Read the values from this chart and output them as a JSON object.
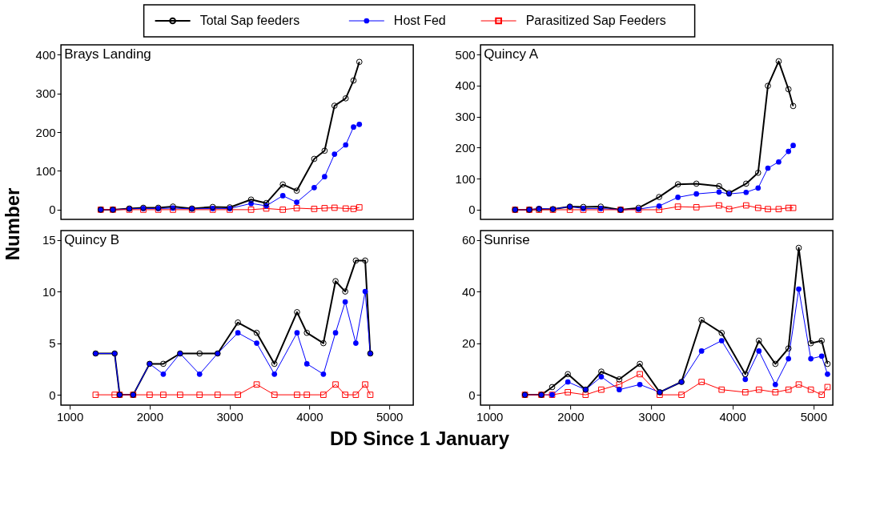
{
  "chart_data": [
    {
      "type": "line",
      "title": "Brays Landing",
      "ylabel": "Number",
      "legend": "top",
      "xlim": [
        890,
        5300
      ],
      "ylim": [
        -25,
        425
      ],
      "yticks": [
        0,
        100,
        200,
        300,
        400
      ],
      "xticks": [
        1000,
        2000,
        3000,
        4000,
        5000
      ],
      "tick_labels": "y",
      "x": [
        1388,
        1540,
        1746,
        1921,
        2108,
        2292,
        2530,
        2790,
        3003,
        3270,
        3460,
        3667,
        3841,
        4060,
        4190,
        4314,
        4454,
        4552,
        4625
      ],
      "series": [
        {
          "name": "Total Sap feeders",
          "color": "#000000",
          "marker": "circle",
          "values": [
            0,
            0,
            3,
            5,
            5,
            8,
            3,
            7,
            6,
            26,
            17,
            65,
            49,
            131,
            152,
            268,
            287,
            333,
            381
          ]
        },
        {
          "name": "Host Fed",
          "color": "#0000ff",
          "marker": "circle",
          "values": [
            0,
            0,
            2,
            3,
            3,
            4,
            2,
            3,
            3,
            16,
            10,
            36,
            19,
            57,
            85,
            143,
            167,
            213,
            220
          ]
        },
        {
          "name": "Parasitized Sap Feeders",
          "color": "#ff0000",
          "marker": "square",
          "values": [
            0,
            0,
            0,
            0,
            0,
            0,
            0,
            0,
            0,
            0,
            3,
            0,
            4,
            2,
            4,
            5,
            3,
            2,
            6
          ]
        }
      ]
    },
    {
      "type": "line",
      "title": "Quincy A",
      "xlim": [
        890,
        5240
      ],
      "ylim": [
        -31,
        531
      ],
      "yticks": [
        0,
        100,
        200,
        300,
        400,
        500
      ],
      "xticks": [
        1000,
        2000,
        3000,
        4000,
        5000
      ],
      "tick_labels": "y",
      "x": [
        1317,
        1492,
        1612,
        1784,
        1993,
        2159,
        2374,
        2619,
        2841,
        3095,
        3327,
        3555,
        3835,
        3959,
        4169,
        4317,
        4438,
        4571,
        4692,
        4750
      ],
      "series": [
        {
          "color": "#000000",
          "marker": "circle",
          "values": [
            0,
            0,
            2,
            2,
            10,
            9,
            10,
            0,
            6,
            41,
            82,
            84,
            76,
            54,
            84,
            119,
            399,
            478,
            388,
            334
          ]
        },
        {
          "color": "#0000ff",
          "marker": "circle",
          "values": [
            0,
            0,
            4,
            2,
            10,
            4,
            4,
            0,
            2,
            12,
            40,
            51,
            57,
            51,
            56,
            70,
            134,
            154,
            188,
            207
          ]
        },
        {
          "color": "#ff0000",
          "marker": "square",
          "values": [
            0,
            0,
            0,
            0,
            0,
            0,
            0,
            0,
            0,
            0,
            10,
            8,
            14,
            2,
            14,
            6,
            2,
            2,
            6,
            6
          ]
        }
      ]
    },
    {
      "type": "line",
      "title": "Quincy B",
      "xlabel": "DD Since 1 January",
      "xlim": [
        890,
        5300
      ],
      "ylim": [
        -1,
        15.9
      ],
      "yticks": [
        0,
        5,
        10,
        15
      ],
      "xticks": [
        1000,
        2000,
        3000,
        4000,
        5000
      ],
      "x": [
        1324,
        1562,
        1625,
        1794,
        2000,
        2171,
        2381,
        2625,
        2851,
        3105,
        3340,
        3562,
        3845,
        3968,
        4175,
        4327,
        4448,
        4581,
        4698,
        4762
      ],
      "series": [
        {
          "color": "#000000",
          "marker": "circle",
          "values": [
            4,
            4,
            0,
            0,
            3,
            3,
            4,
            4,
            4,
            7,
            6,
            3,
            8,
            6,
            5,
            11,
            10,
            13,
            13,
            4
          ]
        },
        {
          "color": "#0000ff",
          "marker": "circle",
          "values": [
            4,
            4,
            0,
            0,
            3,
            2,
            4,
            2,
            4,
            6,
            5,
            2,
            6,
            3,
            2,
            6,
            9,
            5,
            10,
            4
          ]
        },
        {
          "color": "#ff0000",
          "marker": "square",
          "values": [
            0,
            0,
            0,
            0,
            0,
            0,
            0,
            0,
            0,
            0,
            1,
            0,
            0,
            0,
            0,
            1,
            0,
            0,
            1,
            0
          ]
        }
      ]
    },
    {
      "type": "line",
      "title": "Sunrise",
      "xlim": [
        890,
        5240
      ],
      "ylim": [
        -4,
        63.7
      ],
      "yticks": [
        0,
        20,
        40,
        60
      ],
      "xticks": [
        1000,
        2000,
        3000,
        4000,
        5000
      ],
      "x": [
        1438,
        1641,
        1774,
        1968,
        2187,
        2381,
        2603,
        2857,
        3102,
        3371,
        3619,
        3867,
        4159,
        4327,
        4530,
        4692,
        4819,
        4968,
        5102,
        5174
      ],
      "series": [
        {
          "color": "#000000",
          "marker": "circle",
          "values": [
            0,
            0,
            3,
            8,
            2,
            9,
            6,
            12,
            1,
            5,
            29,
            24,
            8,
            21,
            12,
            18,
            57,
            20,
            21,
            12
          ]
        },
        {
          "color": "#0000ff",
          "marker": "circle",
          "values": [
            0,
            0,
            0,
            5,
            2,
            7,
            2,
            4,
            1,
            5,
            17,
            21,
            6,
            17,
            4,
            14,
            41,
            14,
            15,
            8
          ]
        },
        {
          "color": "#ff0000",
          "marker": "square",
          "values": [
            0,
            0,
            0,
            1,
            0,
            2,
            4,
            8,
            0,
            0,
            5,
            2,
            1,
            2,
            1,
            2,
            4,
            2,
            0,
            3
          ]
        }
      ]
    }
  ]
}
